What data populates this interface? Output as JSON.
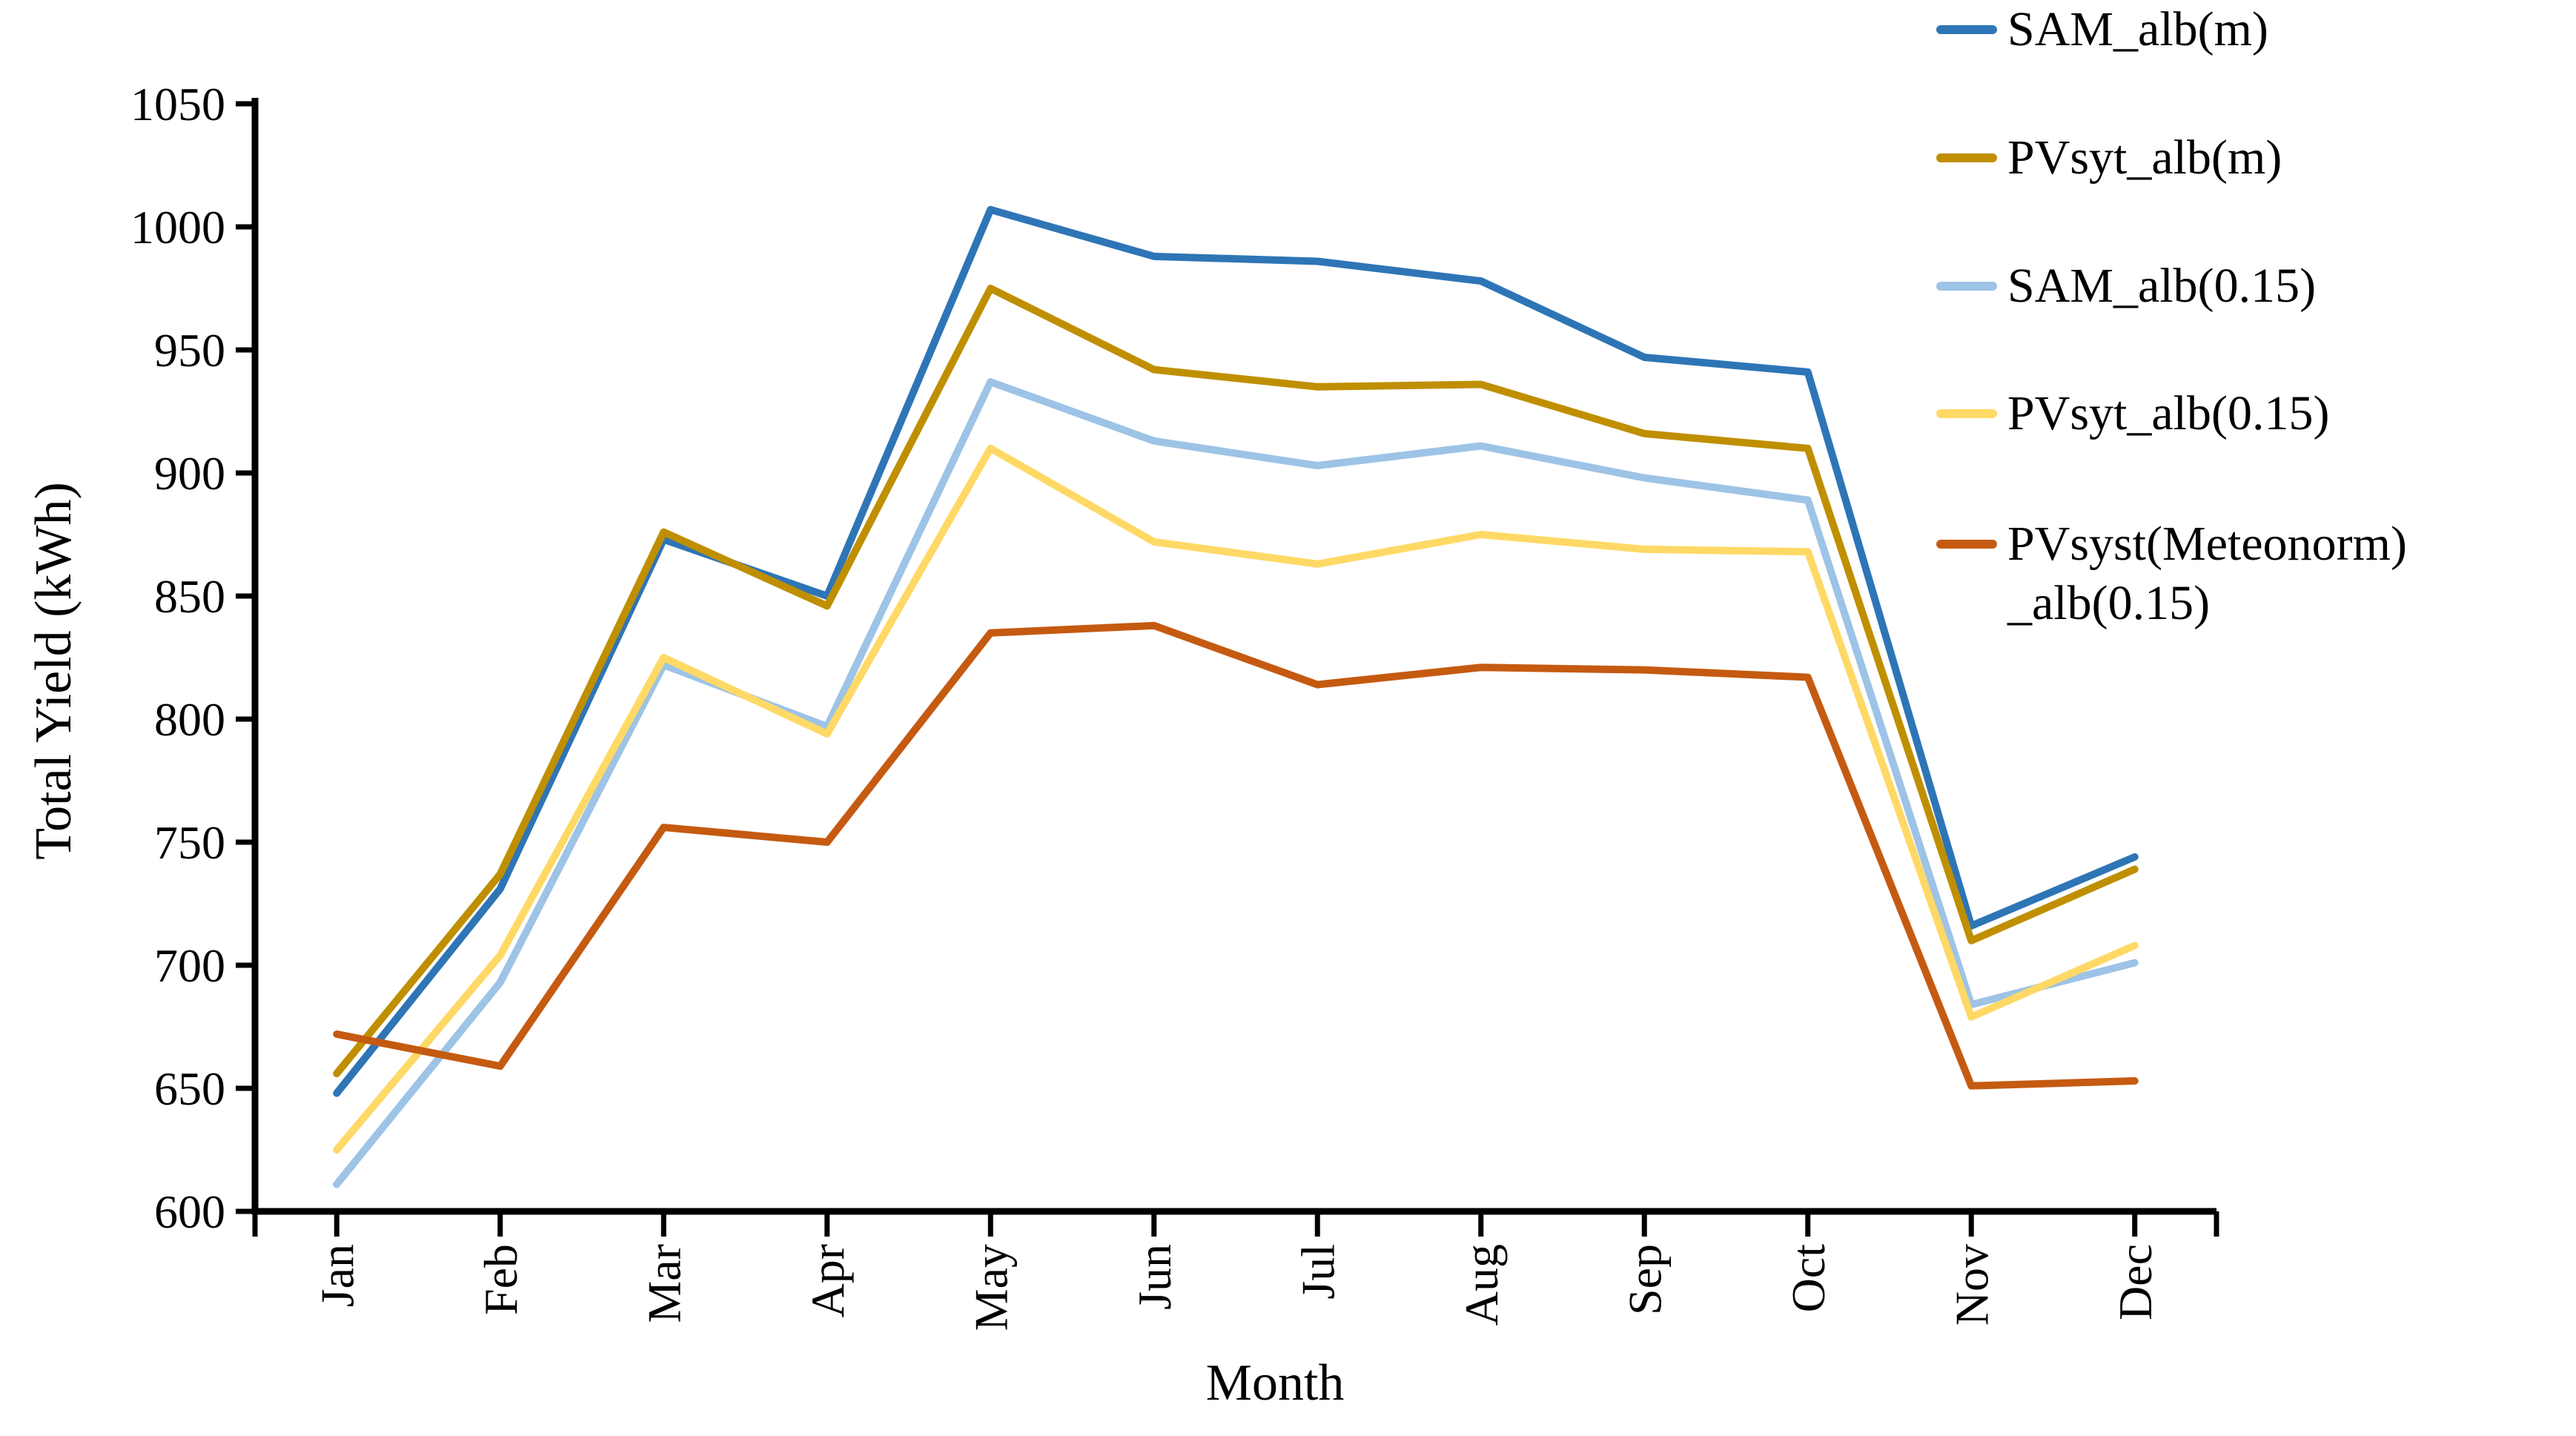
{
  "chart_data": {
    "type": "line",
    "title": "",
    "xlabel": "Month",
    "ylabel": "Total Yield (kWh)",
    "ylim": [
      600,
      1050
    ],
    "yticks": [
      600,
      650,
      700,
      750,
      800,
      850,
      900,
      950,
      1000,
      1050
    ],
    "grid": false,
    "legend_position": "right",
    "categories": [
      "Jan",
      "Feb",
      "Mar",
      "Apr",
      "May",
      "Jun",
      "Jul",
      "Aug",
      "Sep",
      "Oct",
      "Nov",
      "Dec"
    ],
    "series": [
      {
        "name": "SAM_alb(m)",
        "color": "#2E75B6",
        "values": [
          648,
          731,
          873,
          850,
          1007,
          988,
          986,
          978,
          947,
          941,
          716,
          744
        ]
      },
      {
        "name": "PVsyt_alb(m)",
        "color": "#BF8F00",
        "values": [
          656,
          737,
          876,
          846,
          975,
          942,
          935,
          936,
          916,
          910,
          710,
          739
        ]
      },
      {
        "name": "SAM_alb(0.15)",
        "color": "#9DC3E6",
        "values": [
          611,
          693,
          822,
          797,
          937,
          913,
          903,
          911,
          898,
          889,
          684,
          701
        ]
      },
      {
        "name": "PVsyt_alb(0.15)",
        "color": "#FFD966",
        "values": [
          625,
          704,
          825,
          794,
          910,
          872,
          863,
          875,
          869,
          868,
          679,
          708
        ]
      },
      {
        "name": "PVsyst(Meteonorm)_alb(0.15)",
        "legend_lines": [
          "PVsyst(Meteonorm)",
          "_alb(0.15)"
        ],
        "color": "#C55A11",
        "values": [
          672,
          659,
          756,
          750,
          835,
          838,
          814,
          821,
          820,
          817,
          651,
          653
        ]
      }
    ]
  }
}
